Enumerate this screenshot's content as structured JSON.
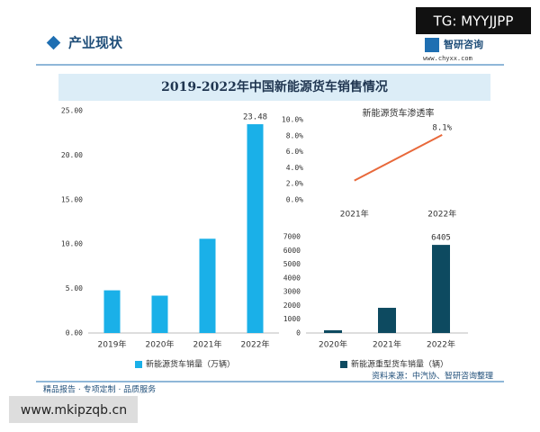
{
  "header": {
    "section": "产业现状",
    "brand": "智研咨询",
    "site": "www.chyxx.com",
    "tag": "TG: MYYJJPP"
  },
  "banner_title": "2019-2022年中国新能源货车销售情况",
  "footer": {
    "slogan": "精品报告 · 专项定制 · 品质服务",
    "source": "资料来源：中汽协、智研咨询整理",
    "watermark": "www.mkipzqb.cn"
  },
  "chart_data": [
    {
      "type": "bar",
      "categories": [
        "2019年",
        "2020年",
        "2021年",
        "2022年"
      ],
      "series": [
        {
          "name": "新能源货车销量（万辆）",
          "color": "#1ab0e8",
          "values": [
            4.8,
            4.2,
            10.6,
            23.48
          ],
          "value_labels": [
            null,
            null,
            null,
            "23.48"
          ]
        }
      ],
      "ylim": [
        0,
        25
      ],
      "yticks": [
        {
          "value": 0,
          "label": "0.00"
        },
        {
          "value": 5,
          "label": "5.00"
        },
        {
          "value": 10,
          "label": "10.00"
        },
        {
          "value": 15,
          "label": "15.00"
        },
        {
          "value": 20,
          "label": "20.00"
        },
        {
          "value": 25,
          "label": "25.00"
        }
      ]
    },
    {
      "type": "line",
      "title": "新能源货车渗透率",
      "categories": [
        "2021年",
        "2022年"
      ],
      "series": [
        {
          "color": "#e8683a",
          "values": [
            2.4,
            8.1
          ],
          "value_labels": [
            null,
            "8.1%"
          ]
        }
      ],
      "ylim": [
        0,
        10
      ],
      "yticks": [
        {
          "value": 0,
          "label": "0.0%"
        },
        {
          "value": 2,
          "label": "2.0%"
        },
        {
          "value": 4,
          "label": "4.0%"
        },
        {
          "value": 6,
          "label": "6.0%"
        },
        {
          "value": 8,
          "label": "8.0%"
        },
        {
          "value": 10,
          "label": "10.0%"
        }
      ]
    },
    {
      "type": "bar",
      "categories": [
        "2020年",
        "2021年",
        "2022年"
      ],
      "series": [
        {
          "name": "新能源重型货车销量（辆）",
          "color": "#0d4a60",
          "values": [
            200,
            1830,
            6405
          ],
          "value_labels": [
            null,
            null,
            "6405"
          ]
        }
      ],
      "ylim": [
        0,
        7000
      ],
      "yticks": [
        0,
        1000,
        2000,
        3000,
        4000,
        5000,
        6000,
        7000
      ]
    }
  ]
}
